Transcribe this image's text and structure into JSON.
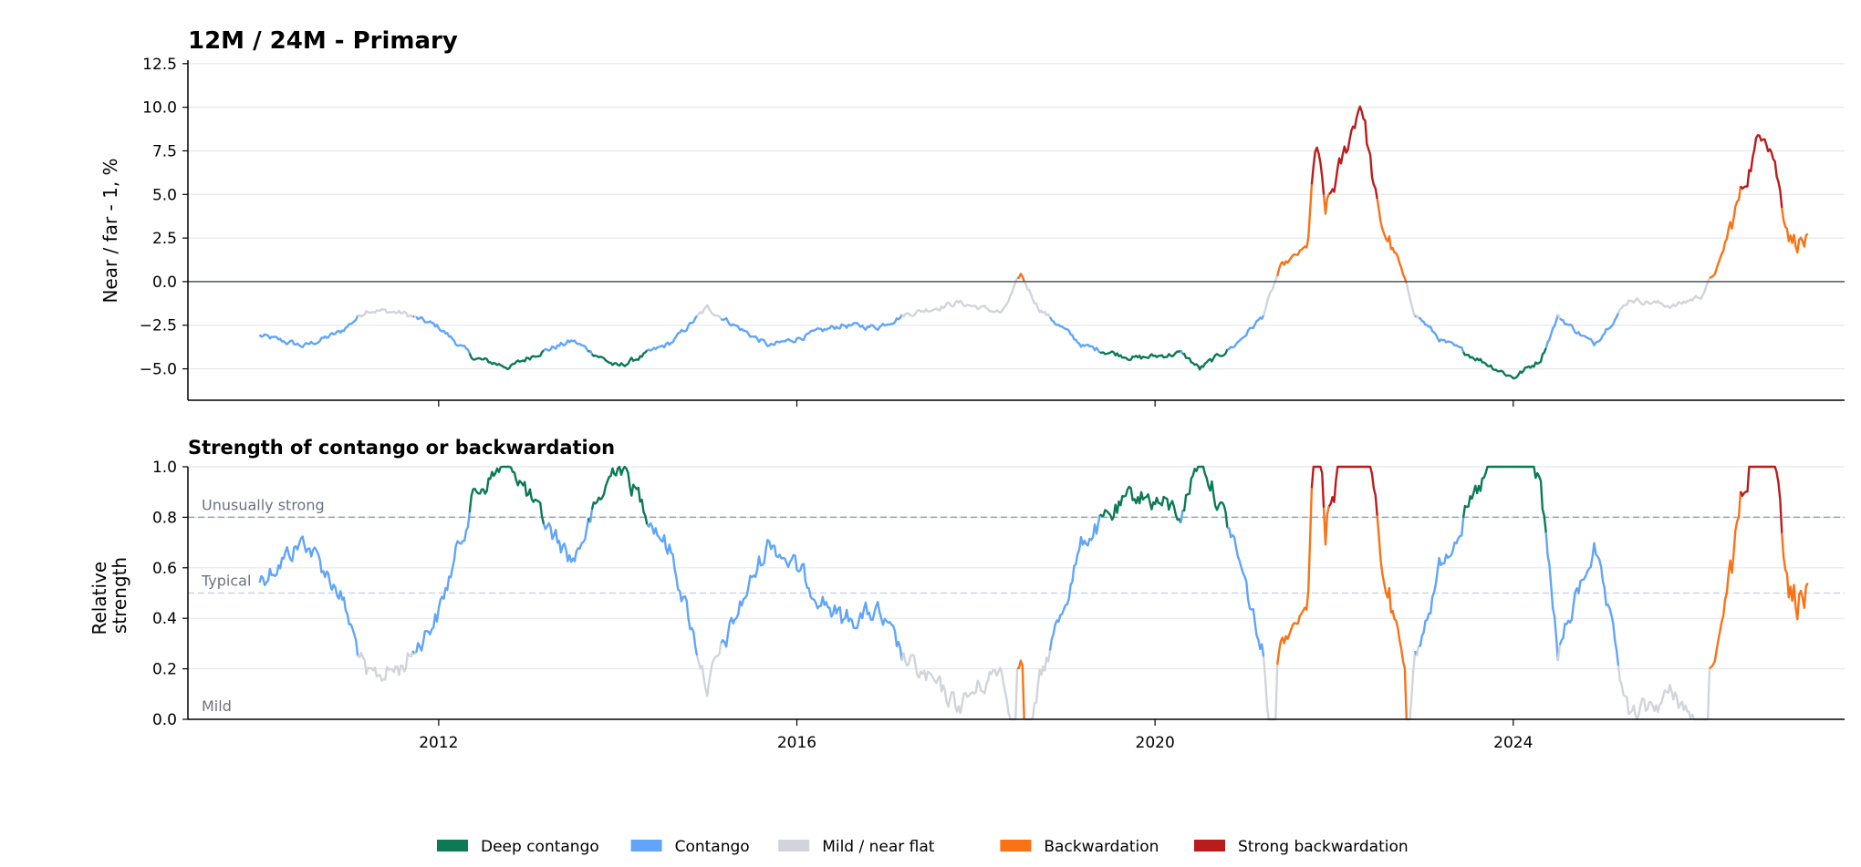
{
  "legend": [
    {
      "key": "deep",
      "label": "Deep contango",
      "color": "#0b7a55"
    },
    {
      "key": "cont",
      "label": "Contango",
      "color": "#60a5fa"
    },
    {
      "key": "mild",
      "label": "Mild / near flat",
      "color": "#d1d5db"
    },
    {
      "key": "back",
      "label": "Backwardation",
      "color": "#f97316"
    },
    {
      "key": "strong",
      "label": "Strong backwardation",
      "color": "#b91c1c"
    }
  ],
  "chart_data": [
    {
      "type": "line",
      "title": "12M / 24M - Primary",
      "ylabel": "Near / far - 1, %",
      "xlim": [
        2009.2,
        2027.7
      ],
      "ylim": [
        -6.8,
        12.7
      ],
      "x_ticks": [
        2012,
        2016,
        2020,
        2024
      ],
      "x_tick_labels": [],
      "y_ticks": [
        -5.0,
        -2.5,
        0.0,
        2.5,
        5.0,
        7.5,
        10.0,
        12.5
      ],
      "y_tick_labels": [
        "−5.0",
        "−2.5",
        "0.0",
        "2.5",
        "5.0",
        "7.5",
        "10.0",
        "12.5"
      ],
      "zero_line": 0,
      "grid": "horizontal",
      "series_anchors": [
        [
          2010.0,
          -3.1
        ],
        [
          2010.5,
          -3.7
        ],
        [
          2010.9,
          -2.9
        ],
        [
          2011.2,
          -1.6
        ],
        [
          2011.6,
          -1.8
        ],
        [
          2012.0,
          -2.6
        ],
        [
          2012.4,
          -4.4
        ],
        [
          2012.8,
          -4.9
        ],
        [
          2013.1,
          -4.1
        ],
        [
          2013.5,
          -3.4
        ],
        [
          2014.0,
          -4.9
        ],
        [
          2014.3,
          -4.2
        ],
        [
          2014.6,
          -3.5
        ],
        [
          2015.0,
          -1.5
        ],
        [
          2015.4,
          -2.8
        ],
        [
          2015.7,
          -3.7
        ],
        [
          2016.1,
          -3.1
        ],
        [
          2016.5,
          -2.5
        ],
        [
          2016.9,
          -2.6
        ],
        [
          2017.2,
          -1.9
        ],
        [
          2017.8,
          -1.2
        ],
        [
          2018.3,
          -1.8
        ],
        [
          2018.5,
          0.4
        ],
        [
          2018.7,
          -1.5
        ],
        [
          2019.2,
          -3.7
        ],
        [
          2019.8,
          -4.4
        ],
        [
          2020.3,
          -4.1
        ],
        [
          2020.5,
          -5.0
        ],
        [
          2020.9,
          -3.6
        ],
        [
          2021.2,
          -2.0
        ],
        [
          2021.4,
          0.8
        ],
        [
          2021.7,
          2.0
        ],
        [
          2021.8,
          8.0
        ],
        [
          2021.9,
          4.0
        ],
        [
          2022.1,
          7.0
        ],
        [
          2022.3,
          10.5
        ],
        [
          2022.5,
          3.5
        ],
        [
          2022.7,
          1.5
        ],
        [
          2022.9,
          -1.8
        ],
        [
          2023.2,
          -3.4
        ],
        [
          2023.6,
          -4.4
        ],
        [
          2024.0,
          -5.5
        ],
        [
          2024.3,
          -4.5
        ],
        [
          2024.5,
          -2.0
        ],
        [
          2024.9,
          -3.6
        ],
        [
          2025.3,
          -1.0
        ],
        [
          2025.8,
          -1.4
        ],
        [
          2026.1,
          -0.8
        ],
        [
          2026.3,
          1.0
        ],
        [
          2026.6,
          6.0
        ],
        [
          2026.8,
          9.0
        ],
        [
          2026.9,
          7.5
        ],
        [
          2027.0,
          4.5
        ],
        [
          2027.1,
          2.5
        ],
        [
          2027.3,
          2.2
        ]
      ]
    },
    {
      "type": "line",
      "title": "Strength of contango or backwardation",
      "ylabel": "Relative strength",
      "xlim": [
        2009.2,
        2027.7
      ],
      "ylim": [
        0,
        1.0
      ],
      "x_ticks": [
        2012,
        2016,
        2020,
        2024
      ],
      "x_tick_labels": [
        "2012",
        "2016",
        "2020",
        "2024"
      ],
      "y_ticks": [
        0.0,
        0.2,
        0.4,
        0.6,
        0.8,
        1.0
      ],
      "y_tick_labels": [
        "0.0",
        "0.2",
        "0.4",
        "0.6",
        "0.8",
        "1.0"
      ],
      "grid": "horizontal",
      "reference_lines": [
        {
          "y": 0.8,
          "label": "Unusually strong",
          "color": "#94a3b8"
        },
        {
          "y": 0.5,
          "label": "Typical",
          "color": "#cbd5e1"
        },
        {
          "y": 0.0,
          "label": "Mild",
          "color": "#cbd5e1"
        }
      ]
    }
  ]
}
